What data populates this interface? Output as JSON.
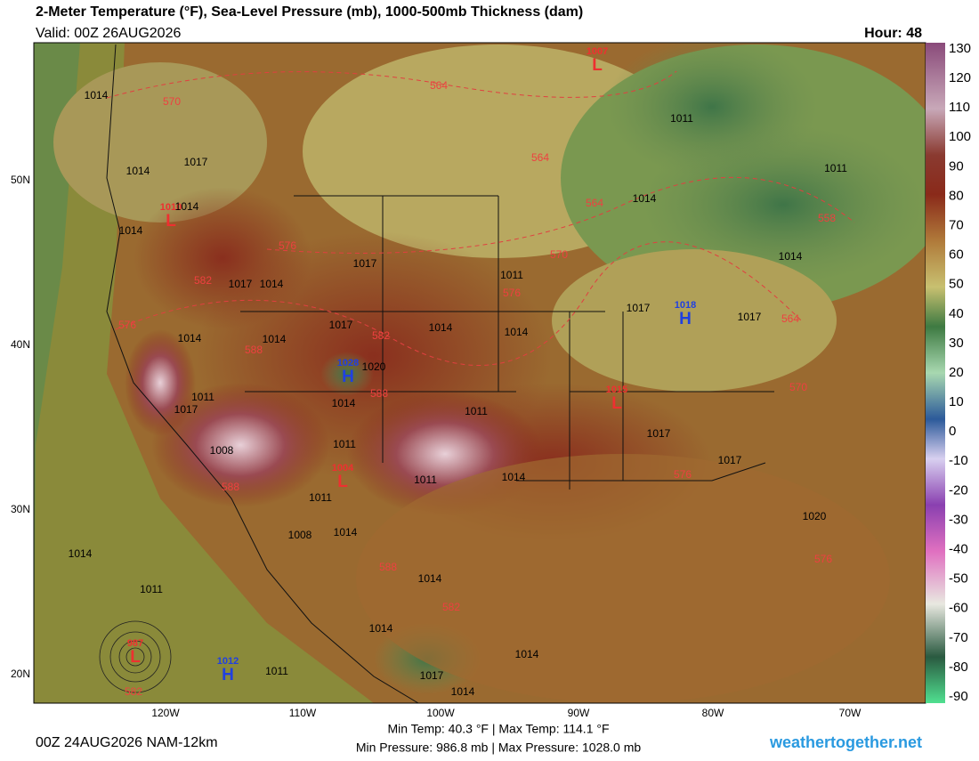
{
  "header": {
    "title": "2-Meter Temperature (°F), Sea-Level Pressure (mb), 1000-500mb Thickness (dam)",
    "valid": "Valid: 00Z 26AUG2026",
    "hour": "Hour: 48"
  },
  "colorbar": {
    "ticks": [
      130,
      120,
      110,
      100,
      90,
      80,
      70,
      60,
      50,
      40,
      30,
      20,
      10,
      0,
      -10,
      -20,
      -30,
      -40,
      -50,
      -60,
      -70,
      -80,
      -90
    ]
  },
  "lat_labels": [
    "50N",
    "40N",
    "30N",
    "20N"
  ],
  "lon_labels": [
    "120W",
    "110W",
    "100W",
    "90W",
    "80W",
    "70W"
  ],
  "centers": [
    {
      "type": "L",
      "value": "1010"
    },
    {
      "type": "L",
      "value": "1007"
    },
    {
      "type": "H",
      "value": "1018"
    },
    {
      "type": "H",
      "value": "1028"
    },
    {
      "type": "L",
      "value": "1015"
    },
    {
      "type": "L",
      "value": "1004"
    },
    {
      "type": "L",
      "value": "987"
    },
    {
      "type": "H",
      "value": "1012"
    }
  ],
  "isobar_labels": [
    "1014",
    "1014",
    "1017",
    "1014",
    "1014",
    "1017",
    "1014",
    "1017",
    "1011",
    "1017",
    "1014",
    "1014",
    "1020",
    "1014",
    "1014",
    "1011",
    "1017",
    "1014",
    "1011",
    "1011",
    "1008",
    "1014",
    "1011",
    "1011",
    "1008",
    "1014",
    "1014",
    "1011",
    "1014",
    "1014",
    "1014",
    "1011",
    "1017",
    "1014",
    "1017",
    "1017",
    "1014",
    "1011",
    "1011",
    "1014",
    "1017",
    "1017",
    "1020"
  ],
  "thickness_labels": [
    "570",
    "564",
    "564",
    "564",
    "576",
    "582",
    "570",
    "576",
    "576",
    "588",
    "582",
    "588",
    "588",
    "576",
    "564",
    "570",
    "558",
    "576",
    "588",
    "582",
    "582"
  ],
  "footer": {
    "run": "00Z 24AUG2026 NAM-12km",
    "temp": "Min Temp:  40.3 °F | Max Temp: 114.1 °F",
    "pressure": "Min Pressure: 986.8 mb | Max Pressure: 1028.0 mb",
    "site": "weathertogether.net"
  }
}
